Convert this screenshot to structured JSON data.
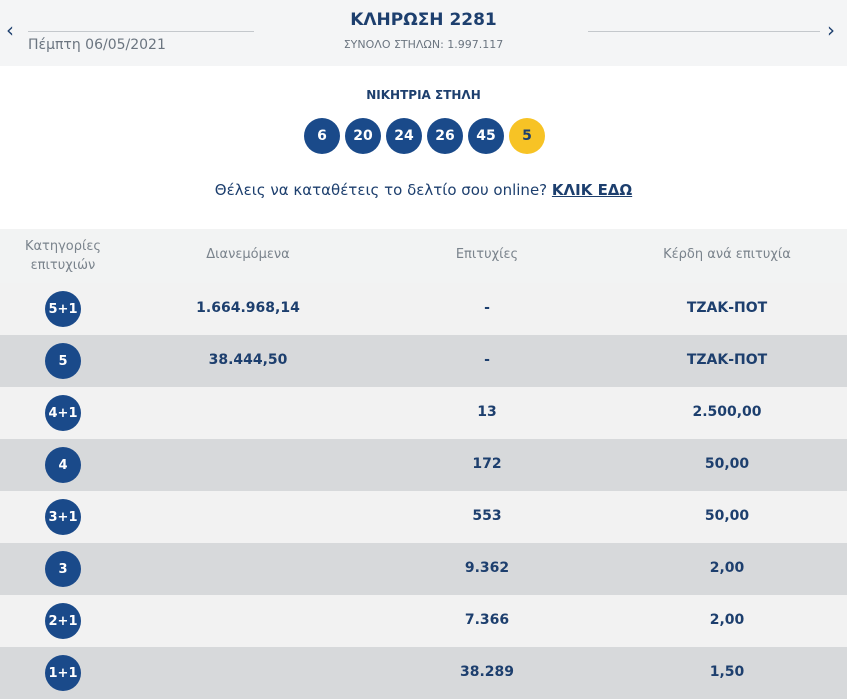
{
  "header": {
    "title": "ΚΛΗΡΩΣΗ 2281",
    "date": "Πέμπτη 06/05/2021",
    "total_columns": "ΣΥΝΟΛΟ ΣΤΗΛΩΝ: 1.997.117",
    "prev": "‹",
    "next": "›"
  },
  "winning": {
    "label": "ΝΙΚΗΤΡΙΑ ΣΤΗΛΗ",
    "numbers": [
      "6",
      "20",
      "24",
      "26",
      "45"
    ],
    "bonus": "5"
  },
  "promo": {
    "text": "Θέλεις να καταθέτεις το δελτίο σου online? ",
    "link": "ΚΛΙΚ ΕΔΩ"
  },
  "table": {
    "headers": [
      "Κατηγορίες επιτυχιών",
      "Διανεμόμενα",
      "Επιτυχίες",
      "Κέρδη ανά επιτυχία"
    ],
    "rows": [
      {
        "cat": "5+1",
        "dist": "1.664.968,14",
        "wins": "-",
        "prize": "ΤΖΑΚ-ΠΟΤ"
      },
      {
        "cat": "5",
        "dist": "38.444,50",
        "wins": "-",
        "prize": "ΤΖΑΚ-ΠΟΤ"
      },
      {
        "cat": "4+1",
        "dist": "",
        "wins": "13",
        "prize": "2.500,00"
      },
      {
        "cat": "4",
        "dist": "",
        "wins": "172",
        "prize": "50,00"
      },
      {
        "cat": "3+1",
        "dist": "",
        "wins": "553",
        "prize": "50,00"
      },
      {
        "cat": "3",
        "dist": "",
        "wins": "9.362",
        "prize": "2,00"
      },
      {
        "cat": "2+1",
        "dist": "",
        "wins": "7.366",
        "prize": "2,00"
      },
      {
        "cat": "1+1",
        "dist": "",
        "wins": "38.289",
        "prize": "1,50"
      }
    ]
  },
  "colors": {
    "navy": "#1a4a8a",
    "bonus": "#f7c325",
    "row_light": "#f2f2f2",
    "row_dark": "#d7d9db"
  }
}
